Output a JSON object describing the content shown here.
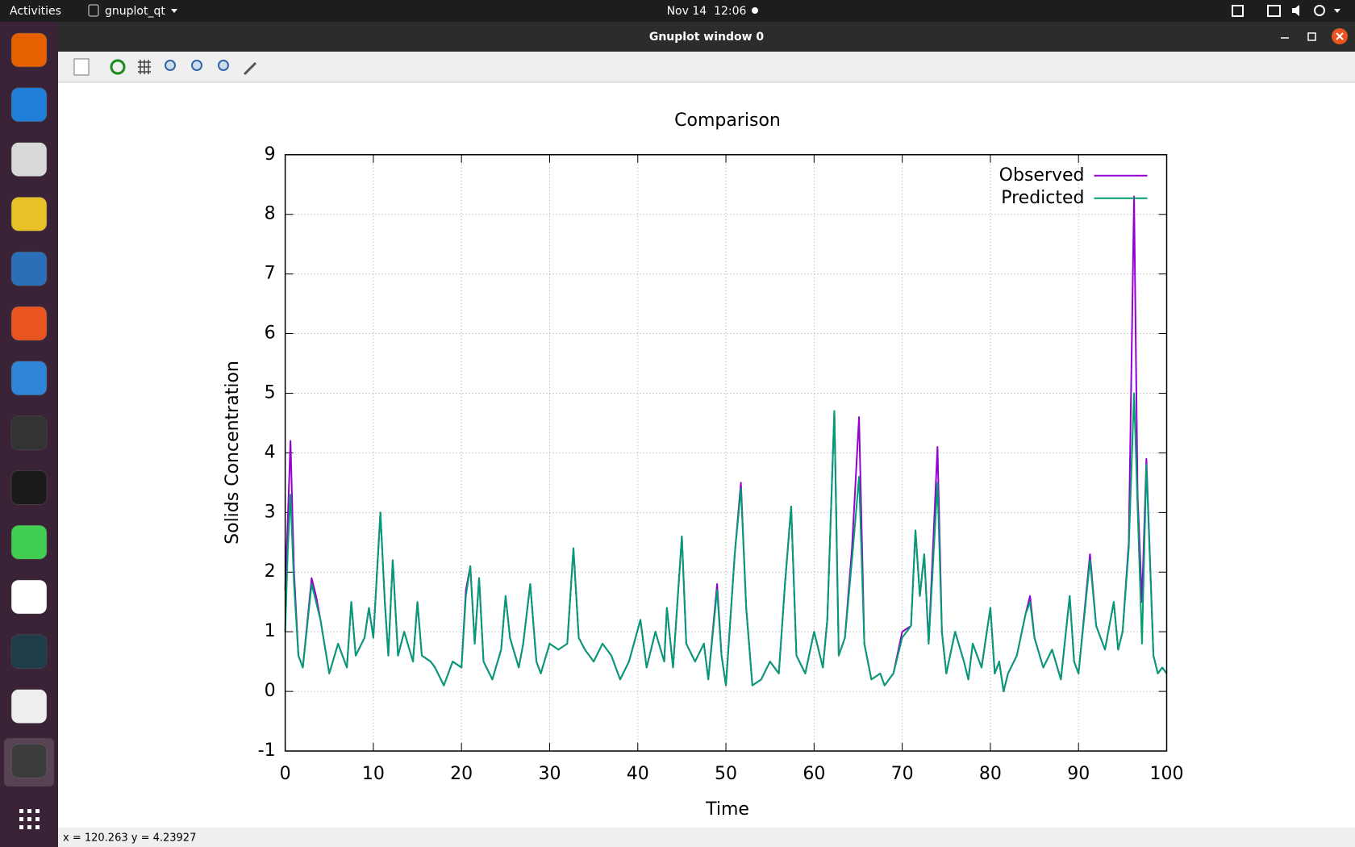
{
  "top_bar": {
    "activities": "Activities",
    "app_menu": "gnuplot_qt",
    "clock": "Nov 14  12:06"
  },
  "window": {
    "title": "Gnuplot window 0",
    "status": "x = 120.263 y = 4.23927"
  },
  "chart_data": {
    "type": "line",
    "title": "Comparison",
    "x_label": "Time",
    "y_label": "Solids Concentration",
    "x": [
      0,
      0.3,
      0.6,
      1,
      1.5,
      2,
      3,
      3.5,
      4,
      5,
      6,
      7,
      7.5,
      8,
      9,
      9.5,
      10,
      10.8,
      11.3,
      11.7,
      12.2,
      12.8,
      13.5,
      14.5,
      15,
      15.5,
      16.5,
      17,
      18,
      19,
      20,
      20.5,
      21,
      21.5,
      22,
      22.5,
      23.5,
      24.5,
      25,
      25.5,
      26.5,
      27,
      27.8,
      28.5,
      29,
      30,
      31,
      32,
      32.7,
      33.3,
      34,
      35,
      36,
      37,
      38,
      39,
      40.3,
      41,
      42,
      43,
      43.3,
      44,
      45,
      45.5,
      46.5,
      47.5,
      48,
      49,
      49.5,
      50,
      51,
      51.7,
      52.3,
      53,
      54,
      55,
      56,
      56.7,
      57.4,
      58,
      59,
      60,
      61,
      61.5,
      62.3,
      62.8,
      63.5,
      64.3,
      65.1,
      65.7,
      66.5,
      67.5,
      68,
      69,
      70,
      71,
      71.5,
      72,
      72.5,
      73,
      74,
      74.5,
      75,
      76,
      77,
      77.5,
      78,
      79,
      80,
      80.5,
      81,
      81.5,
      82,
      83,
      84,
      84.5,
      85,
      86,
      87,
      88,
      89,
      89.5,
      90,
      91.3,
      92,
      93,
      94,
      94.5,
      95,
      95.7,
      96.3,
      96.7,
      97.2,
      97.7,
      98.5,
      99,
      99.5,
      100
    ],
    "series": [
      {
        "name": "Observed",
        "color": "#9400d3",
        "values": [
          1.7,
          2.9,
          4.2,
          2.0,
          0.6,
          0.4,
          1.9,
          1.6,
          1.2,
          0.3,
          0.8,
          0.4,
          1.5,
          0.6,
          0.9,
          1.4,
          0.9,
          3.0,
          1.5,
          0.6,
          2.2,
          0.6,
          1.0,
          0.5,
          1.5,
          0.6,
          0.5,
          0.4,
          0.1,
          0.5,
          0.4,
          1.7,
          2.1,
          0.8,
          1.9,
          0.5,
          0.2,
          0.7,
          1.6,
          0.9,
          0.4,
          0.8,
          1.8,
          0.5,
          0.3,
          0.8,
          0.7,
          0.8,
          2.4,
          0.9,
          0.7,
          0.5,
          0.8,
          0.6,
          0.2,
          0.5,
          1.2,
          0.4,
          1.0,
          0.5,
          1.4,
          0.4,
          2.6,
          0.8,
          0.5,
          0.8,
          0.2,
          1.8,
          0.6,
          0.1,
          2.3,
          3.5,
          1.4,
          0.1,
          0.2,
          0.5,
          0.3,
          1.8,
          3.1,
          0.6,
          0.3,
          1.0,
          0.4,
          1.2,
          4.7,
          0.6,
          0.9,
          2.4,
          4.6,
          0.8,
          0.2,
          0.3,
          0.1,
          0.3,
          1.0,
          1.1,
          2.7,
          1.6,
          2.3,
          0.8,
          4.1,
          1.0,
          0.3,
          1.0,
          0.5,
          0.2,
          0.8,
          0.4,
          1.4,
          0.3,
          0.5,
          0.0,
          0.3,
          0.6,
          1.3,
          1.6,
          0.9,
          0.4,
          0.7,
          0.2,
          1.6,
          0.5,
          0.3,
          2.3,
          1.1,
          0.7,
          1.5,
          0.7,
          1.0,
          2.5,
          8.3,
          3.3,
          1.5,
          3.9,
          0.6,
          0.3,
          0.4,
          0.3
        ]
      },
      {
        "name": "Predicted",
        "color": "#009e73",
        "values": [
          1.0,
          2.4,
          3.3,
          1.8,
          0.6,
          0.4,
          1.8,
          1.5,
          1.2,
          0.3,
          0.8,
          0.4,
          1.5,
          0.6,
          0.9,
          1.4,
          0.9,
          3.0,
          1.5,
          0.6,
          2.2,
          0.6,
          1.0,
          0.5,
          1.5,
          0.6,
          0.5,
          0.4,
          0.1,
          0.5,
          0.4,
          1.6,
          2.1,
          0.8,
          1.9,
          0.5,
          0.2,
          0.7,
          1.6,
          0.9,
          0.4,
          0.8,
          1.8,
          0.5,
          0.3,
          0.8,
          0.7,
          0.8,
          2.4,
          0.9,
          0.7,
          0.5,
          0.8,
          0.6,
          0.2,
          0.5,
          1.2,
          0.4,
          1.0,
          0.5,
          1.4,
          0.4,
          2.6,
          0.8,
          0.5,
          0.8,
          0.2,
          1.7,
          0.6,
          0.1,
          2.3,
          3.4,
          1.4,
          0.1,
          0.2,
          0.5,
          0.3,
          1.8,
          3.1,
          0.6,
          0.3,
          1.0,
          0.4,
          1.2,
          4.7,
          0.6,
          0.9,
          2.2,
          3.6,
          0.8,
          0.2,
          0.3,
          0.1,
          0.3,
          0.9,
          1.1,
          2.7,
          1.6,
          2.3,
          0.8,
          3.5,
          1.0,
          0.3,
          1.0,
          0.5,
          0.2,
          0.8,
          0.4,
          1.4,
          0.3,
          0.5,
          0.0,
          0.3,
          0.6,
          1.3,
          1.5,
          0.9,
          0.4,
          0.7,
          0.2,
          1.6,
          0.5,
          0.3,
          2.2,
          1.1,
          0.7,
          1.5,
          0.7,
          1.0,
          2.4,
          5.0,
          3.1,
          0.8,
          3.8,
          0.6,
          0.3,
          0.4,
          0.3
        ]
      }
    ],
    "xlim": [
      0,
      100
    ],
    "ylim": [
      -1,
      9
    ],
    "xticks": [
      0,
      10,
      20,
      30,
      40,
      50,
      60,
      70,
      80,
      90,
      100
    ],
    "yticks": [
      -1,
      0,
      1,
      2,
      3,
      4,
      5,
      6,
      7,
      8,
      9
    ],
    "grid": true,
    "legend": "top-right"
  }
}
